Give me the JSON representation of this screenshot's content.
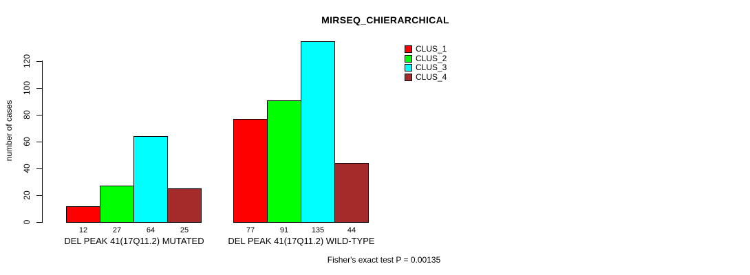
{
  "chart_data": {
    "type": "bar",
    "title": "MIRSEQ_CHIERARCHICAL",
    "ylabel": "number of cases",
    "xlabel": "",
    "yticks": [
      0,
      20,
      40,
      60,
      80,
      100,
      120
    ],
    "ylim": [
      0,
      140
    ],
    "grid": false,
    "legend_position": "top-right",
    "bar_value_labels": true,
    "categories": [
      "DEL PEAK 41(17Q11.2) MUTATED",
      "DEL PEAK 41(17Q11.2) WILD-TYPE"
    ],
    "series": [
      {
        "name": "CLUS_1",
        "color": "#ff0000",
        "values": [
          12,
          77
        ]
      },
      {
        "name": "CLUS_2",
        "color": "#00ff00",
        "values": [
          27,
          91
        ]
      },
      {
        "name": "CLUS_3",
        "color": "#00ffff",
        "values": [
          64,
          135
        ]
      },
      {
        "name": "CLUS_4",
        "color": "#a52a2a",
        "values": [
          25,
          44
        ]
      }
    ],
    "bar_border_color": "#000000",
    "annotation": "Fisher's exact test P = 0.00135"
  }
}
